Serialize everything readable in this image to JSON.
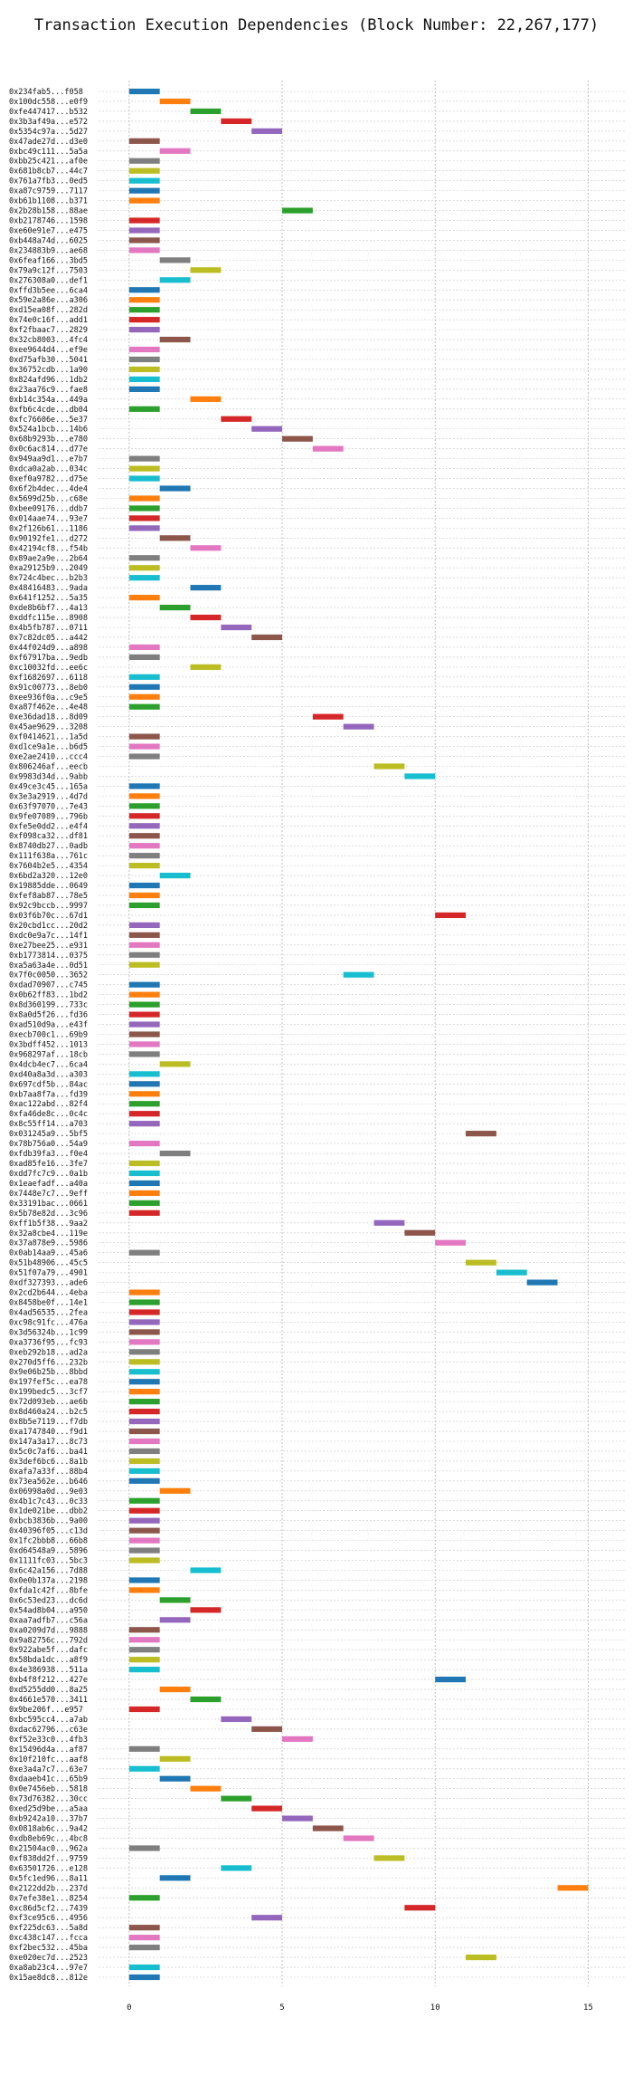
{
  "chart_data": {
    "type": "bar",
    "orientation": "horizontal",
    "title": "Transaction Execution Dependencies (Block Number: 22,267,177)",
    "xlabel": "",
    "ylabel": "",
    "xlim": [
      -1,
      16.2
    ],
    "x_ticks": [
      0,
      5,
      10,
      15
    ],
    "grid": true,
    "legend": "none",
    "palette": [
      "#1f77b4",
      "#ff7f0e",
      "#2ca02c",
      "#d62728",
      "#9467bd",
      "#8c564b",
      "#e377c2",
      "#7f7f7f",
      "#bcbd22",
      "#17becf"
    ],
    "transactions": [
      {
        "label": "0x234fab5...f058",
        "start": 0,
        "color": 0
      },
      {
        "label": "0x100dc558...e0f9",
        "start": 1,
        "color": 1
      },
      {
        "label": "0xfe447417...b532",
        "start": 2,
        "color": 2
      },
      {
        "label": "0x3b3af49a...e572",
        "start": 3,
        "color": 3
      },
      {
        "label": "0x5354c97a...5d27",
        "start": 4,
        "color": 4
      },
      {
        "label": "0x47ade27d...d3e0",
        "start": 0,
        "color": 5
      },
      {
        "label": "0xbc49c111...5a5a",
        "start": 1,
        "color": 6
      },
      {
        "label": "0xbb25c421...af0e",
        "start": 0,
        "color": 7
      },
      {
        "label": "0x681b8cb7...44c7",
        "start": 0,
        "color": 8
      },
      {
        "label": "0x761a7fb3...0ed5",
        "start": 0,
        "color": 9
      },
      {
        "label": "0xa87c9759...7117",
        "start": 0,
        "color": 0
      },
      {
        "label": "0xb61b1108...b371",
        "start": 0,
        "color": 1
      },
      {
        "label": "0x2b28b158...88ae",
        "start": 5,
        "color": 2
      },
      {
        "label": "0xb2178746...1598",
        "start": 0,
        "color": 3
      },
      {
        "label": "0xe60e91e7...e475",
        "start": 0,
        "color": 4
      },
      {
        "label": "0xb448a74d...6025",
        "start": 0,
        "color": 5
      },
      {
        "label": "0x234883b9...ae68",
        "start": 0,
        "color": 6
      },
      {
        "label": "0x6feaf166...3bd5",
        "start": 1,
        "color": 7
      },
      {
        "label": "0x79a9c12f...7503",
        "start": 2,
        "color": 8
      },
      {
        "label": "0x276308a0...def1",
        "start": 1,
        "color": 9
      },
      {
        "label": "0xffd3b5ee...6ca4",
        "start": 0,
        "color": 0
      },
      {
        "label": "0x59e2a86e...a306",
        "start": 0,
        "color": 1
      },
      {
        "label": "0xd15ea08f...282d",
        "start": 0,
        "color": 2
      },
      {
        "label": "0x74e0c16f...add1",
        "start": 0,
        "color": 3
      },
      {
        "label": "0xf2fbaac7...2829",
        "start": 0,
        "color": 4
      },
      {
        "label": "0x32cb8003...4fc4",
        "start": 1,
        "color": 5
      },
      {
        "label": "0xee9644d4...ef9e",
        "start": 0,
        "color": 6
      },
      {
        "label": "0xd75afb30...5041",
        "start": 0,
        "color": 7
      },
      {
        "label": "0x36752cdb...1a90",
        "start": 0,
        "color": 8
      },
      {
        "label": "0x824afd96...1db2",
        "start": 0,
        "color": 9
      },
      {
        "label": "0x23aa76c9...fae8",
        "start": 0,
        "color": 0
      },
      {
        "label": "0xb14c354a...449a",
        "start": 2,
        "color": 1
      },
      {
        "label": "0xfb6c4cde...db04",
        "start": 0,
        "color": 2
      },
      {
        "label": "0xfc76606e...5e37",
        "start": 3,
        "color": 3
      },
      {
        "label": "0x524a1bcb...14b6",
        "start": 4,
        "color": 4
      },
      {
        "label": "0x68b9293b...e780",
        "start": 5,
        "color": 5
      },
      {
        "label": "0x0c6ac814...d77e",
        "start": 6,
        "color": 6
      },
      {
        "label": "0x949aa9d1...e7b7",
        "start": 0,
        "color": 7
      },
      {
        "label": "0xdca0a2ab...034c",
        "start": 0,
        "color": 8
      },
      {
        "label": "0xef0a9782...d75e",
        "start": 0,
        "color": 9
      },
      {
        "label": "0x6f2b4dec...4de4",
        "start": 1,
        "color": 0
      },
      {
        "label": "0x5699d25b...c68e",
        "start": 0,
        "color": 1
      },
      {
        "label": "0xbee09176...ddb7",
        "start": 0,
        "color": 2
      },
      {
        "label": "0x014aae74...93e7",
        "start": 0,
        "color": 3
      },
      {
        "label": "0x2f126b61...1186",
        "start": 0,
        "color": 4
      },
      {
        "label": "0x90192fe1...d272",
        "start": 1,
        "color": 5
      },
      {
        "label": "0x42194cf8...f54b",
        "start": 2,
        "color": 6
      },
      {
        "label": "0x89ae2a9e...2b64",
        "start": 0,
        "color": 7
      },
      {
        "label": "0xa29125b9...2049",
        "start": 0,
        "color": 8
      },
      {
        "label": "0x724c4bec...b2b3",
        "start": 0,
        "color": 9
      },
      {
        "label": "0x48416483...9ada",
        "start": 2,
        "color": 0
      },
      {
        "label": "0x641f1252...5a35",
        "start": 0,
        "color": 1
      },
      {
        "label": "0xde8b6bf7...4a13",
        "start": 1,
        "color": 2
      },
      {
        "label": "0xddfc115e...8908",
        "start": 2,
        "color": 3
      },
      {
        "label": "0x4b5fb787...0711",
        "start": 3,
        "color": 4
      },
      {
        "label": "0x7c82dc05...a442",
        "start": 4,
        "color": 5
      },
      {
        "label": "0x44f024d9...a898",
        "start": 0,
        "color": 6
      },
      {
        "label": "0xf67917ba...9edb",
        "start": 0,
        "color": 7
      },
      {
        "label": "0xc10032fd...ee6c",
        "start": 2,
        "color": 8
      },
      {
        "label": "0xf1682697...6118",
        "start": 0,
        "color": 9
      },
      {
        "label": "0x91c00773...8eb0",
        "start": 0,
        "color": 0
      },
      {
        "label": "0xee936f0a...c9e5",
        "start": 0,
        "color": 1
      },
      {
        "label": "0xa87f462e...4e48",
        "start": 0,
        "color": 2
      },
      {
        "label": "0xe36dad18...8d09",
        "start": 6,
        "color": 3
      },
      {
        "label": "0x45ae9629...3208",
        "start": 7,
        "color": 4
      },
      {
        "label": "0xf0414621...1a5d",
        "start": 0,
        "color": 5
      },
      {
        "label": "0xd1ce9a1e...b6d5",
        "start": 0,
        "color": 6
      },
      {
        "label": "0xe2ae2410...ccc4",
        "start": 0,
        "color": 7
      },
      {
        "label": "0x806246af...eecb",
        "start": 8,
        "color": 8
      },
      {
        "label": "0x9983d34d...9abb",
        "start": 9,
        "color": 9
      },
      {
        "label": "0x49ce3c45...165a",
        "start": 0,
        "color": 0
      },
      {
        "label": "0x3e3a2919...4d7d",
        "start": 0,
        "color": 1
      },
      {
        "label": "0x63f97070...7e43",
        "start": 0,
        "color": 2
      },
      {
        "label": "0x9fe07089...796b",
        "start": 0,
        "color": 3
      },
      {
        "label": "0xfe5e0dd2...e4f4",
        "start": 0,
        "color": 4
      },
      {
        "label": "0xf098ca32...df81",
        "start": 0,
        "color": 5
      },
      {
        "label": "0x8740db27...0adb",
        "start": 0,
        "color": 6
      },
      {
        "label": "0x111f638a...761c",
        "start": 0,
        "color": 7
      },
      {
        "label": "0x7604b2e5...4354",
        "start": 0,
        "color": 8
      },
      {
        "label": "0x6bd2a320...12e0",
        "start": 1,
        "color": 9
      },
      {
        "label": "0x19885dde...0649",
        "start": 0,
        "color": 0
      },
      {
        "label": "0xfef8ab87...78e5",
        "start": 0,
        "color": 1
      },
      {
        "label": "0x92c9bccb...9997",
        "start": 0,
        "color": 2
      },
      {
        "label": "0x03f6b70c...67d1",
        "start": 10,
        "color": 3
      },
      {
        "label": "0x20cbd1cc...20d2",
        "start": 0,
        "color": 4
      },
      {
        "label": "0xdc0e9a7c...14f1",
        "start": 0,
        "color": 5
      },
      {
        "label": "0xe27bee25...e931",
        "start": 0,
        "color": 6
      },
      {
        "label": "0xb1773814...0375",
        "start": 0,
        "color": 7
      },
      {
        "label": "0xa5a63a4e...0d51",
        "start": 0,
        "color": 8
      },
      {
        "label": "0x7f0c0050...3652",
        "start": 7,
        "color": 9
      },
      {
        "label": "0xdad70907...c745",
        "start": 0,
        "color": 0
      },
      {
        "label": "0x0b62ff83...1bd2",
        "start": 0,
        "color": 1
      },
      {
        "label": "0x8d360199...733c",
        "start": 0,
        "color": 2
      },
      {
        "label": "0x8a0d5f26...fd36",
        "start": 0,
        "color": 3
      },
      {
        "label": "0xad510d9a...e43f",
        "start": 0,
        "color": 4
      },
      {
        "label": "0xecb700c1...69b9",
        "start": 0,
        "color": 5
      },
      {
        "label": "0x3bdff452...1013",
        "start": 0,
        "color": 6
      },
      {
        "label": "0x968297af...18cb",
        "start": 0,
        "color": 7
      },
      {
        "label": "0x4dcb4ec7...6ca4",
        "start": 1,
        "color": 8
      },
      {
        "label": "0xd40a8a3d...a303",
        "start": 0,
        "color": 9
      },
      {
        "label": "0x697cdf5b...84ac",
        "start": 0,
        "color": 0
      },
      {
        "label": "0xb7aa8f7a...fd39",
        "start": 0,
        "color": 1
      },
      {
        "label": "0xac122abd...82f4",
        "start": 0,
        "color": 2
      },
      {
        "label": "0xfa46de8c...0c4c",
        "start": 0,
        "color": 3
      },
      {
        "label": "0x8c55ff14...a703",
        "start": 0,
        "color": 4
      },
      {
        "label": "0x031245a9...5bf5",
        "start": 11,
        "color": 5
      },
      {
        "label": "0x78b756a0...54a9",
        "start": 0,
        "color": 6
      },
      {
        "label": "0xfdb39fa3...f0e4",
        "start": 1,
        "color": 7
      },
      {
        "label": "0xad85fe16...3fe7",
        "start": 0,
        "color": 8
      },
      {
        "label": "0xdd7fc7c9...0a1b",
        "start": 0,
        "color": 9
      },
      {
        "label": "0x1eaefadf...a40a",
        "start": 0,
        "color": 0
      },
      {
        "label": "0x7448e7c7...9eff",
        "start": 0,
        "color": 1
      },
      {
        "label": "0x33191bac...0661",
        "start": 0,
        "color": 2
      },
      {
        "label": "0x5b78e82d...3c96",
        "start": 0,
        "color": 3
      },
      {
        "label": "0xff1b5f38...9aa2",
        "start": 8,
        "color": 4
      },
      {
        "label": "0x32a8cbe4...119e",
        "start": 9,
        "color": 5
      },
      {
        "label": "0x37a878e9...5986",
        "start": 10,
        "color": 6
      },
      {
        "label": "0x0ab14aa9...45a6",
        "start": 0,
        "color": 7
      },
      {
        "label": "0x51b48906...45c5",
        "start": 11,
        "color": 8
      },
      {
        "label": "0x51f07a79...4901",
        "start": 12,
        "color": 9
      },
      {
        "label": "0xdf327393...ade6",
        "start": 13,
        "color": 0
      },
      {
        "label": "0x2cd2b644...4eba",
        "start": 0,
        "color": 1
      },
      {
        "label": "0x8458be0f...14e1",
        "start": 0,
        "color": 2
      },
      {
        "label": "0x4ad56535...2fea",
        "start": 0,
        "color": 3
      },
      {
        "label": "0xc98c91fc...476a",
        "start": 0,
        "color": 4
      },
      {
        "label": "0x3d56324b...1c99",
        "start": 0,
        "color": 5
      },
      {
        "label": "0xa3736f95...fc93",
        "start": 0,
        "color": 6
      },
      {
        "label": "0xeb292b18...ad2a",
        "start": 0,
        "color": 7
      },
      {
        "label": "0x270d5ff6...232b",
        "start": 0,
        "color": 8
      },
      {
        "label": "0x9e06b25b...8bbd",
        "start": 0,
        "color": 9
      },
      {
        "label": "0x197fef5c...ea78",
        "start": 0,
        "color": 0
      },
      {
        "label": "0x199bedc5...3cf7",
        "start": 0,
        "color": 1
      },
      {
        "label": "0x72d093eb...ae6b",
        "start": 0,
        "color": 2
      },
      {
        "label": "0x8d460a24...b2c5",
        "start": 0,
        "color": 3
      },
      {
        "label": "0x8b5e7119...f7db",
        "start": 0,
        "color": 4
      },
      {
        "label": "0xa1747840...f9d1",
        "start": 0,
        "color": 5
      },
      {
        "label": "0x147a3a17...8c73",
        "start": 0,
        "color": 6
      },
      {
        "label": "0x5c0c7af6...ba41",
        "start": 0,
        "color": 7
      },
      {
        "label": "0x3def6bc6...8a1b",
        "start": 0,
        "color": 8
      },
      {
        "label": "0xafa7a33f...88b4",
        "start": 0,
        "color": 9
      },
      {
        "label": "0x73ea562e...b646",
        "start": 0,
        "color": 0
      },
      {
        "label": "0x06998a0d...9e03",
        "start": 1,
        "color": 1
      },
      {
        "label": "0x4b1c7c43...0c33",
        "start": 0,
        "color": 2
      },
      {
        "label": "0x1de021be...dbb2",
        "start": 0,
        "color": 3
      },
      {
        "label": "0xbcb3836b...9a00",
        "start": 0,
        "color": 4
      },
      {
        "label": "0x40396f05...c13d",
        "start": 0,
        "color": 5
      },
      {
        "label": "0x1fc2bbb8...66b8",
        "start": 0,
        "color": 6
      },
      {
        "label": "0xd64548a9...5896",
        "start": 0,
        "color": 7
      },
      {
        "label": "0x1111fc03...5bc3",
        "start": 0,
        "color": 8
      },
      {
        "label": "0x6c42a156...7d88",
        "start": 2,
        "color": 9
      },
      {
        "label": "0x0e0b137a...2198",
        "start": 0,
        "color": 0
      },
      {
        "label": "0xfda1c42f...8bfe",
        "start": 0,
        "color": 1
      },
      {
        "label": "0x6c53ed23...dc6d",
        "start": 1,
        "color": 2
      },
      {
        "label": "0x54ad8b04...a950",
        "start": 2,
        "color": 3
      },
      {
        "label": "0xaa7adfb7...c56a",
        "start": 1,
        "color": 4
      },
      {
        "label": "0xa0209d7d...9888",
        "start": 0,
        "color": 5
      },
      {
        "label": "0x9a82756c...792d",
        "start": 0,
        "color": 6
      },
      {
        "label": "0x922abe5f...dafc",
        "start": 0,
        "color": 7
      },
      {
        "label": "0x58bda1dc...a8f9",
        "start": 0,
        "color": 8
      },
      {
        "label": "0x4e386938...511a",
        "start": 0,
        "color": 9
      },
      {
        "label": "0xb4f8f212...427e",
        "start": 10,
        "color": 0
      },
      {
        "label": "0xd5255dd0...8a25",
        "start": 1,
        "color": 1
      },
      {
        "label": "0x4661e570...3411",
        "start": 2,
        "color": 2
      },
      {
        "label": "0x9be206f...e957",
        "start": 0,
        "color": 3
      },
      {
        "label": "0xbc595cc4...a7ab",
        "start": 3,
        "color": 4
      },
      {
        "label": "0xdac62796...c63e",
        "start": 4,
        "color": 5
      },
      {
        "label": "0xf52e33c0...4fb3",
        "start": 5,
        "color": 6
      },
      {
        "label": "0x15496d4a...af87",
        "start": 0,
        "color": 7
      },
      {
        "label": "0x10f210fc...aaf8",
        "start": 1,
        "color": 8
      },
      {
        "label": "0xe3a4a7c7...63e7",
        "start": 0,
        "color": 9
      },
      {
        "label": "0xdaaeb41c...65b9",
        "start": 1,
        "color": 0
      },
      {
        "label": "0x0e7456eb...5818",
        "start": 2,
        "color": 1
      },
      {
        "label": "0x73d76382...30cc",
        "start": 3,
        "color": 2
      },
      {
        "label": "0xed25d9be...a5aa",
        "start": 4,
        "color": 3
      },
      {
        "label": "0xb9242a10...37b7",
        "start": 5,
        "color": 4
      },
      {
        "label": "0x0818ab6c...9a42",
        "start": 6,
        "color": 5
      },
      {
        "label": "0xdb8eb69c...4bc8",
        "start": 7,
        "color": 6
      },
      {
        "label": "0x21504ac0...962a",
        "start": 0,
        "color": 7
      },
      {
        "label": "0xf838dd2f...9759",
        "start": 8,
        "color": 8
      },
      {
        "label": "0x63501726...e128",
        "start": 3,
        "color": 9
      },
      {
        "label": "0x5fc1ed96...8a11",
        "start": 1,
        "color": 0
      },
      {
        "label": "0x2122dd2b...237d",
        "start": 14,
        "color": 1
      },
      {
        "label": "0x7efe38e1...8254",
        "start": 0,
        "color": 2
      },
      {
        "label": "0xc86d5cf2...7439",
        "start": 9,
        "color": 3
      },
      {
        "label": "0xf3ce95c6...4956",
        "start": 4,
        "color": 4
      },
      {
        "label": "0xf225dc63...5a8d",
        "start": 0,
        "color": 5
      },
      {
        "label": "0xc438c147...fcca",
        "start": 0,
        "color": 6
      },
      {
        "label": "0xf2bec532...45ba",
        "start": 0,
        "color": 7
      },
      {
        "label": "0xe020ec7d...2523",
        "start": 11,
        "color": 8
      },
      {
        "label": "0xa8ab23c4...97e7",
        "start": 0,
        "color": 9
      },
      {
        "label": "0x15ae8dc8...812e",
        "start": 0,
        "color": 0
      }
    ]
  }
}
